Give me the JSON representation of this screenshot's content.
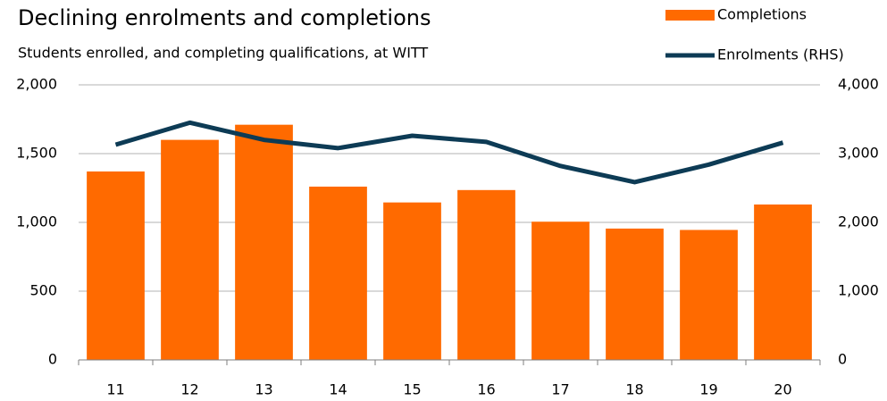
{
  "chart_data": {
    "type": "bar",
    "title": "Declining enrolments and completions",
    "subtitle": "Students enrolled, and completing qualifications, at WITT",
    "categories": [
      "11",
      "12",
      "13",
      "14",
      "15",
      "16",
      "17",
      "18",
      "19",
      "20"
    ],
    "series": [
      {
        "name": "Completions",
        "type": "bar",
        "color": "#ff6a00",
        "values": [
          1370,
          1600,
          1710,
          1260,
          1145,
          1235,
          1005,
          955,
          945,
          1130
        ]
      },
      {
        "name": "Enrolments (RHS)",
        "type": "line",
        "axis": "y2",
        "color": "#0d3b55",
        "values": [
          3130,
          3450,
          3200,
          3080,
          3260,
          3170,
          2820,
          2585,
          2840,
          3160
        ]
      }
    ],
    "ylim": [
      0,
      2000
    ],
    "yticks": [
      0,
      500,
      {
        "value": 1000,
        "label": "1,000"
      },
      {
        "value": 1500,
        "label": "1,500"
      },
      {
        "value": 2000,
        "label": "2,000"
      }
    ],
    "y2lim": [
      0,
      4000
    ],
    "y2ticks": [
      0,
      {
        "value": 1000,
        "label": "1,000"
      },
      {
        "value": 2000,
        "label": "2,000"
      },
      {
        "value": 3000,
        "label": "3,000"
      },
      {
        "value": 4000,
        "label": "4,000"
      }
    ],
    "grid": true
  }
}
